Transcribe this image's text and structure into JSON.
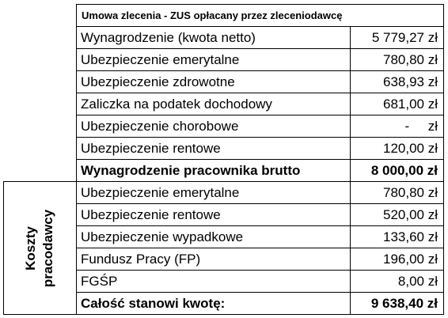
{
  "header": {
    "title": "Umowa zlecenia - ZUS opłacany przez zleceniodawcę"
  },
  "employee_rows": [
    {
      "label": "Wynagrodzenie (kwota netto)",
      "value": "5 779,27 zł"
    },
    {
      "label": "Ubezpieczenie emerytalne",
      "value": "780,80 zł"
    },
    {
      "label": "Ubezpieczenie zdrowotne",
      "value": "638,93 zł"
    },
    {
      "label": "Zaliczka na podatek dochodowy",
      "value": "681,00 zł"
    },
    {
      "label": "Ubezpieczenie chorobowe",
      "value": "-     zł"
    },
    {
      "label": "Ubezpieczenie rentowe",
      "value": "120,00 zł"
    }
  ],
  "employee_total": {
    "label": "Wynagrodzenie pracownika brutto",
    "value": "8 000,00 zł"
  },
  "employer_section": {
    "label": "Koszty pracodawcy",
    "rows": [
      {
        "label": "Ubezpieczenie emerytalne",
        "value": "780,80 zł"
      },
      {
        "label": "Ubezpieczenie rentowe",
        "value": "520,00 zł"
      },
      {
        "label": "Ubezpieczenie wypadkowe",
        "value": "133,60 zł"
      },
      {
        "label": "Fundusz Pracy (FP)",
        "value": "196,00 zł"
      },
      {
        "label": "FGŚP",
        "value": "8,00 zł"
      }
    ]
  },
  "grand_total": {
    "label": "Całość stanowi kwotę:",
    "value": "9 638,40 zł"
  }
}
